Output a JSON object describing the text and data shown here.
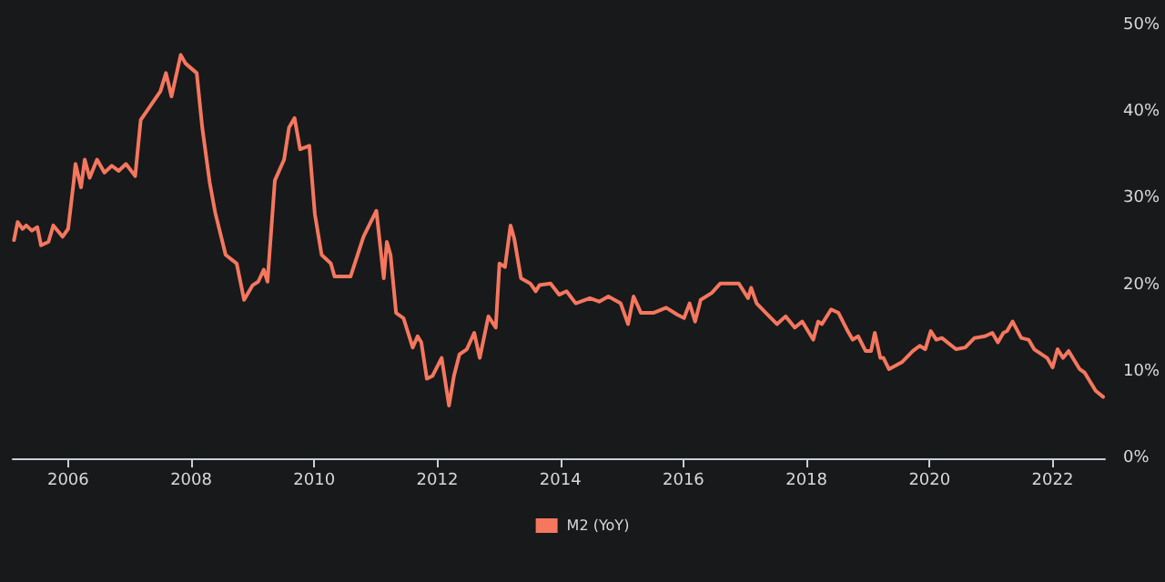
{
  "chart_data": {
    "type": "line",
    "legend": "bottom",
    "grid": false,
    "marker": "none",
    "line_style": "solid",
    "xlim": [
      2005.1,
      2022.85
    ],
    "xticks": [
      2006,
      2008,
      2010,
      2012,
      2014,
      2016,
      2018,
      2020,
      2022
    ],
    "ylim": [
      0,
      50
    ],
    "yticks": [
      {
        "value": 0,
        "label": "0%"
      },
      {
        "value": 10,
        "label": "10%"
      },
      {
        "value": 20,
        "label": "20%"
      },
      {
        "value": 30,
        "label": "30%"
      },
      {
        "value": 40,
        "label": "40%"
      },
      {
        "value": 50,
        "label": "50%"
      }
    ],
    "series": [
      {
        "name": "M2 (YoY)",
        "color": "#f4775e",
        "x": [
          2005.12,
          2005.18,
          2005.26,
          2005.32,
          2005.41,
          2005.5,
          2005.56,
          2005.68,
          2005.76,
          2005.91,
          2006.0,
          2006.09,
          2006.12,
          2006.21,
          2006.27,
          2006.35,
          2006.47,
          2006.59,
          2006.71,
          2006.82,
          2006.94,
          2007.09,
          2007.18,
          2007.5,
          2007.59,
          2007.68,
          2007.83,
          2007.91,
          2008.09,
          2008.18,
          2008.3,
          2008.39,
          2008.56,
          2008.74,
          2008.86,
          2009.0,
          2009.09,
          2009.18,
          2009.24,
          2009.36,
          2009.51,
          2009.59,
          2009.68,
          2009.77,
          2009.92,
          2010.01,
          2010.12,
          2010.27,
          2010.33,
          2010.59,
          2010.8,
          2011.01,
          2011.13,
          2011.18,
          2011.24,
          2011.33,
          2011.45,
          2011.6,
          2011.68,
          2011.74,
          2011.83,
          2011.92,
          2012.07,
          2012.19,
          2012.27,
          2012.36,
          2012.48,
          2012.6,
          2012.69,
          2012.83,
          2012.95,
          2013.01,
          2013.1,
          2013.19,
          2013.25,
          2013.36,
          2013.51,
          2013.6,
          2013.66,
          2013.84,
          2013.98,
          2014.1,
          2014.25,
          2014.48,
          2014.63,
          2014.78,
          2014.98,
          2015.1,
          2015.19,
          2015.31,
          2015.51,
          2015.72,
          2015.9,
          2016.01,
          2016.1,
          2016.19,
          2016.28,
          2016.46,
          2016.6,
          2016.78,
          2016.9,
          2017.05,
          2017.1,
          2017.19,
          2017.34,
          2017.52,
          2017.66,
          2017.81,
          2017.93,
          2018.11,
          2018.19,
          2018.25,
          2018.4,
          2018.52,
          2018.67,
          2018.75,
          2018.84,
          2018.96,
          2019.05,
          2019.11,
          2019.2,
          2019.25,
          2019.34,
          2019.55,
          2019.73,
          2019.84,
          2019.93,
          2020.02,
          2020.11,
          2020.2,
          2020.43,
          2020.58,
          2020.73,
          2020.9,
          2021.02,
          2021.11,
          2021.2,
          2021.26,
          2021.35,
          2021.49,
          2021.61,
          2021.7,
          2021.91,
          2022.0,
          2022.08,
          2022.17,
          2022.26,
          2022.44,
          2022.52,
          2022.7,
          2022.82
        ],
        "values": [
          25.2,
          27.3,
          26.5,
          26.9,
          26.3,
          26.7,
          24.6,
          25.0,
          26.9,
          25.6,
          26.5,
          31.9,
          34.0,
          31.3,
          34.5,
          32.4,
          34.5,
          33.0,
          33.8,
          33.2,
          34.0,
          32.6,
          39.1,
          42.4,
          44.5,
          41.8,
          46.6,
          45.6,
          44.5,
          38.2,
          31.9,
          28.4,
          23.5,
          22.5,
          18.3,
          20.0,
          20.4,
          21.8,
          20.4,
          32.1,
          34.5,
          38.2,
          39.3,
          35.7,
          36.1,
          28.2,
          23.5,
          22.5,
          21.0,
          21.0,
          25.6,
          28.6,
          20.8,
          25.0,
          23.5,
          16.8,
          16.2,
          12.8,
          14.1,
          13.4,
          9.2,
          9.5,
          11.6,
          6.1,
          9.5,
          12.0,
          12.6,
          14.5,
          11.6,
          16.4,
          15.1,
          22.5,
          22.1,
          26.9,
          25.4,
          20.8,
          20.2,
          19.3,
          20.0,
          20.2,
          18.9,
          19.3,
          17.9,
          18.5,
          18.1,
          18.7,
          17.9,
          15.5,
          18.7,
          16.8,
          16.8,
          17.4,
          16.6,
          16.2,
          17.9,
          15.8,
          18.3,
          19.1,
          20.2,
          20.2,
          20.2,
          18.5,
          19.7,
          17.9,
          16.8,
          15.5,
          16.4,
          15.1,
          15.8,
          13.7,
          15.8,
          15.5,
          17.2,
          16.8,
          14.7,
          13.7,
          14.1,
          12.4,
          12.4,
          14.5,
          11.6,
          11.6,
          10.3,
          11.1,
          12.4,
          13.0,
          12.6,
          14.7,
          13.7,
          13.9,
          12.6,
          12.8,
          13.9,
          14.1,
          14.5,
          13.4,
          14.5,
          14.7,
          15.8,
          13.9,
          13.7,
          12.6,
          11.6,
          10.5,
          12.6,
          11.6,
          12.4,
          10.3,
          9.9,
          7.8,
          7.1
        ]
      }
    ]
  }
}
